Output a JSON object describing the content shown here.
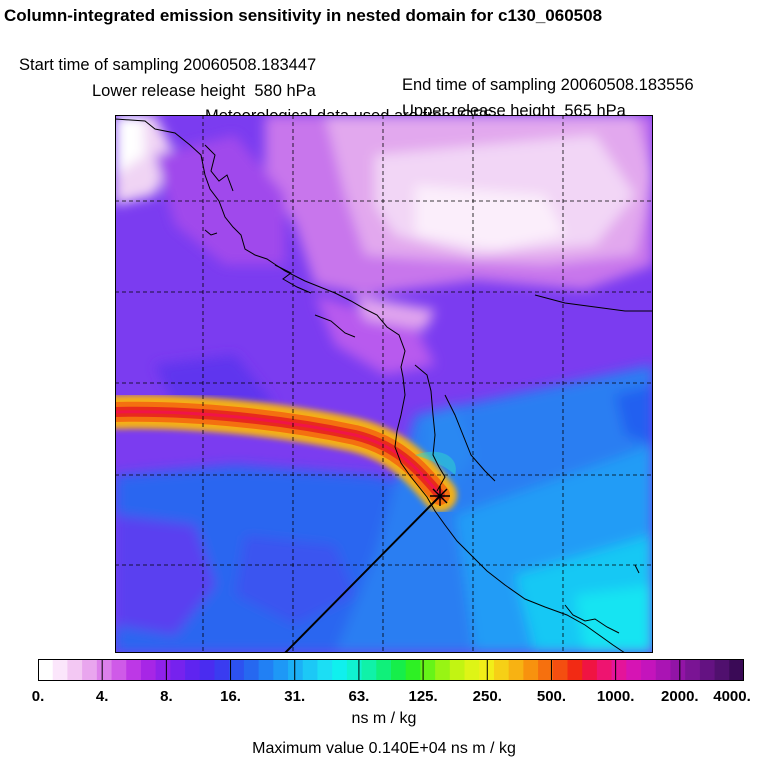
{
  "header": {
    "title": "Column-integrated emission sensitivity in nested domain for c130_060508",
    "start_label": "Start time of sampling 20060508.183447",
    "end_label": "End time of sampling 20060508.183556",
    "lower_label": "Lower release height  580 hPa",
    "upper_label": "Upper release height  565 hPa",
    "met_label": "Meteorological data used are from GFS"
  },
  "colorbar": {
    "ticks": [
      "0.",
      "4.",
      "8.",
      "16.",
      "31.",
      "63.",
      "125.",
      "250.",
      "500.",
      "1000.",
      "2000.",
      "4000."
    ],
    "colors": [
      "#ffffff",
      "#fbe6fb",
      "#f3c8f3",
      "#e9a6ee",
      "#dc80ea",
      "#cf5ae8",
      "#bd38e6",
      "#a726e6",
      "#8f22ea",
      "#7622ee",
      "#5f24f0",
      "#4a2cf0",
      "#3a3cf0",
      "#2d52f0",
      "#2668f0",
      "#2180f4",
      "#1e98f6",
      "#1cb0f6",
      "#1cc8f6",
      "#1cdef4",
      "#10f0ee",
      "#10f2d0",
      "#10f2a8",
      "#10f07a",
      "#16ee4a",
      "#2ef024",
      "#66f418",
      "#98f414",
      "#c2f412",
      "#def416",
      "#f2ee18",
      "#f6d016",
      "#f8b212",
      "#f8920e",
      "#f6700e",
      "#f44e10",
      "#f22a14",
      "#f01442",
      "#ee1470",
      "#e4149a",
      "#d614b4",
      "#c414bc",
      "#aa14b4",
      "#9214a6",
      "#7a1494",
      "#641282",
      "#50106e",
      "#3a0a56"
    ],
    "units": "ns m / kg",
    "max_value": "Maximum value  0.140E+04 ns m / kg"
  },
  "colors": {
    "background_purple": "#7f3cf0",
    "pink_region": "#d98ee8",
    "light_region": "#f3dcf6",
    "ocean_blue": "#2a98f2",
    "cyan_region": "#18d8f2",
    "plume_core": "#e8281c"
  }
}
